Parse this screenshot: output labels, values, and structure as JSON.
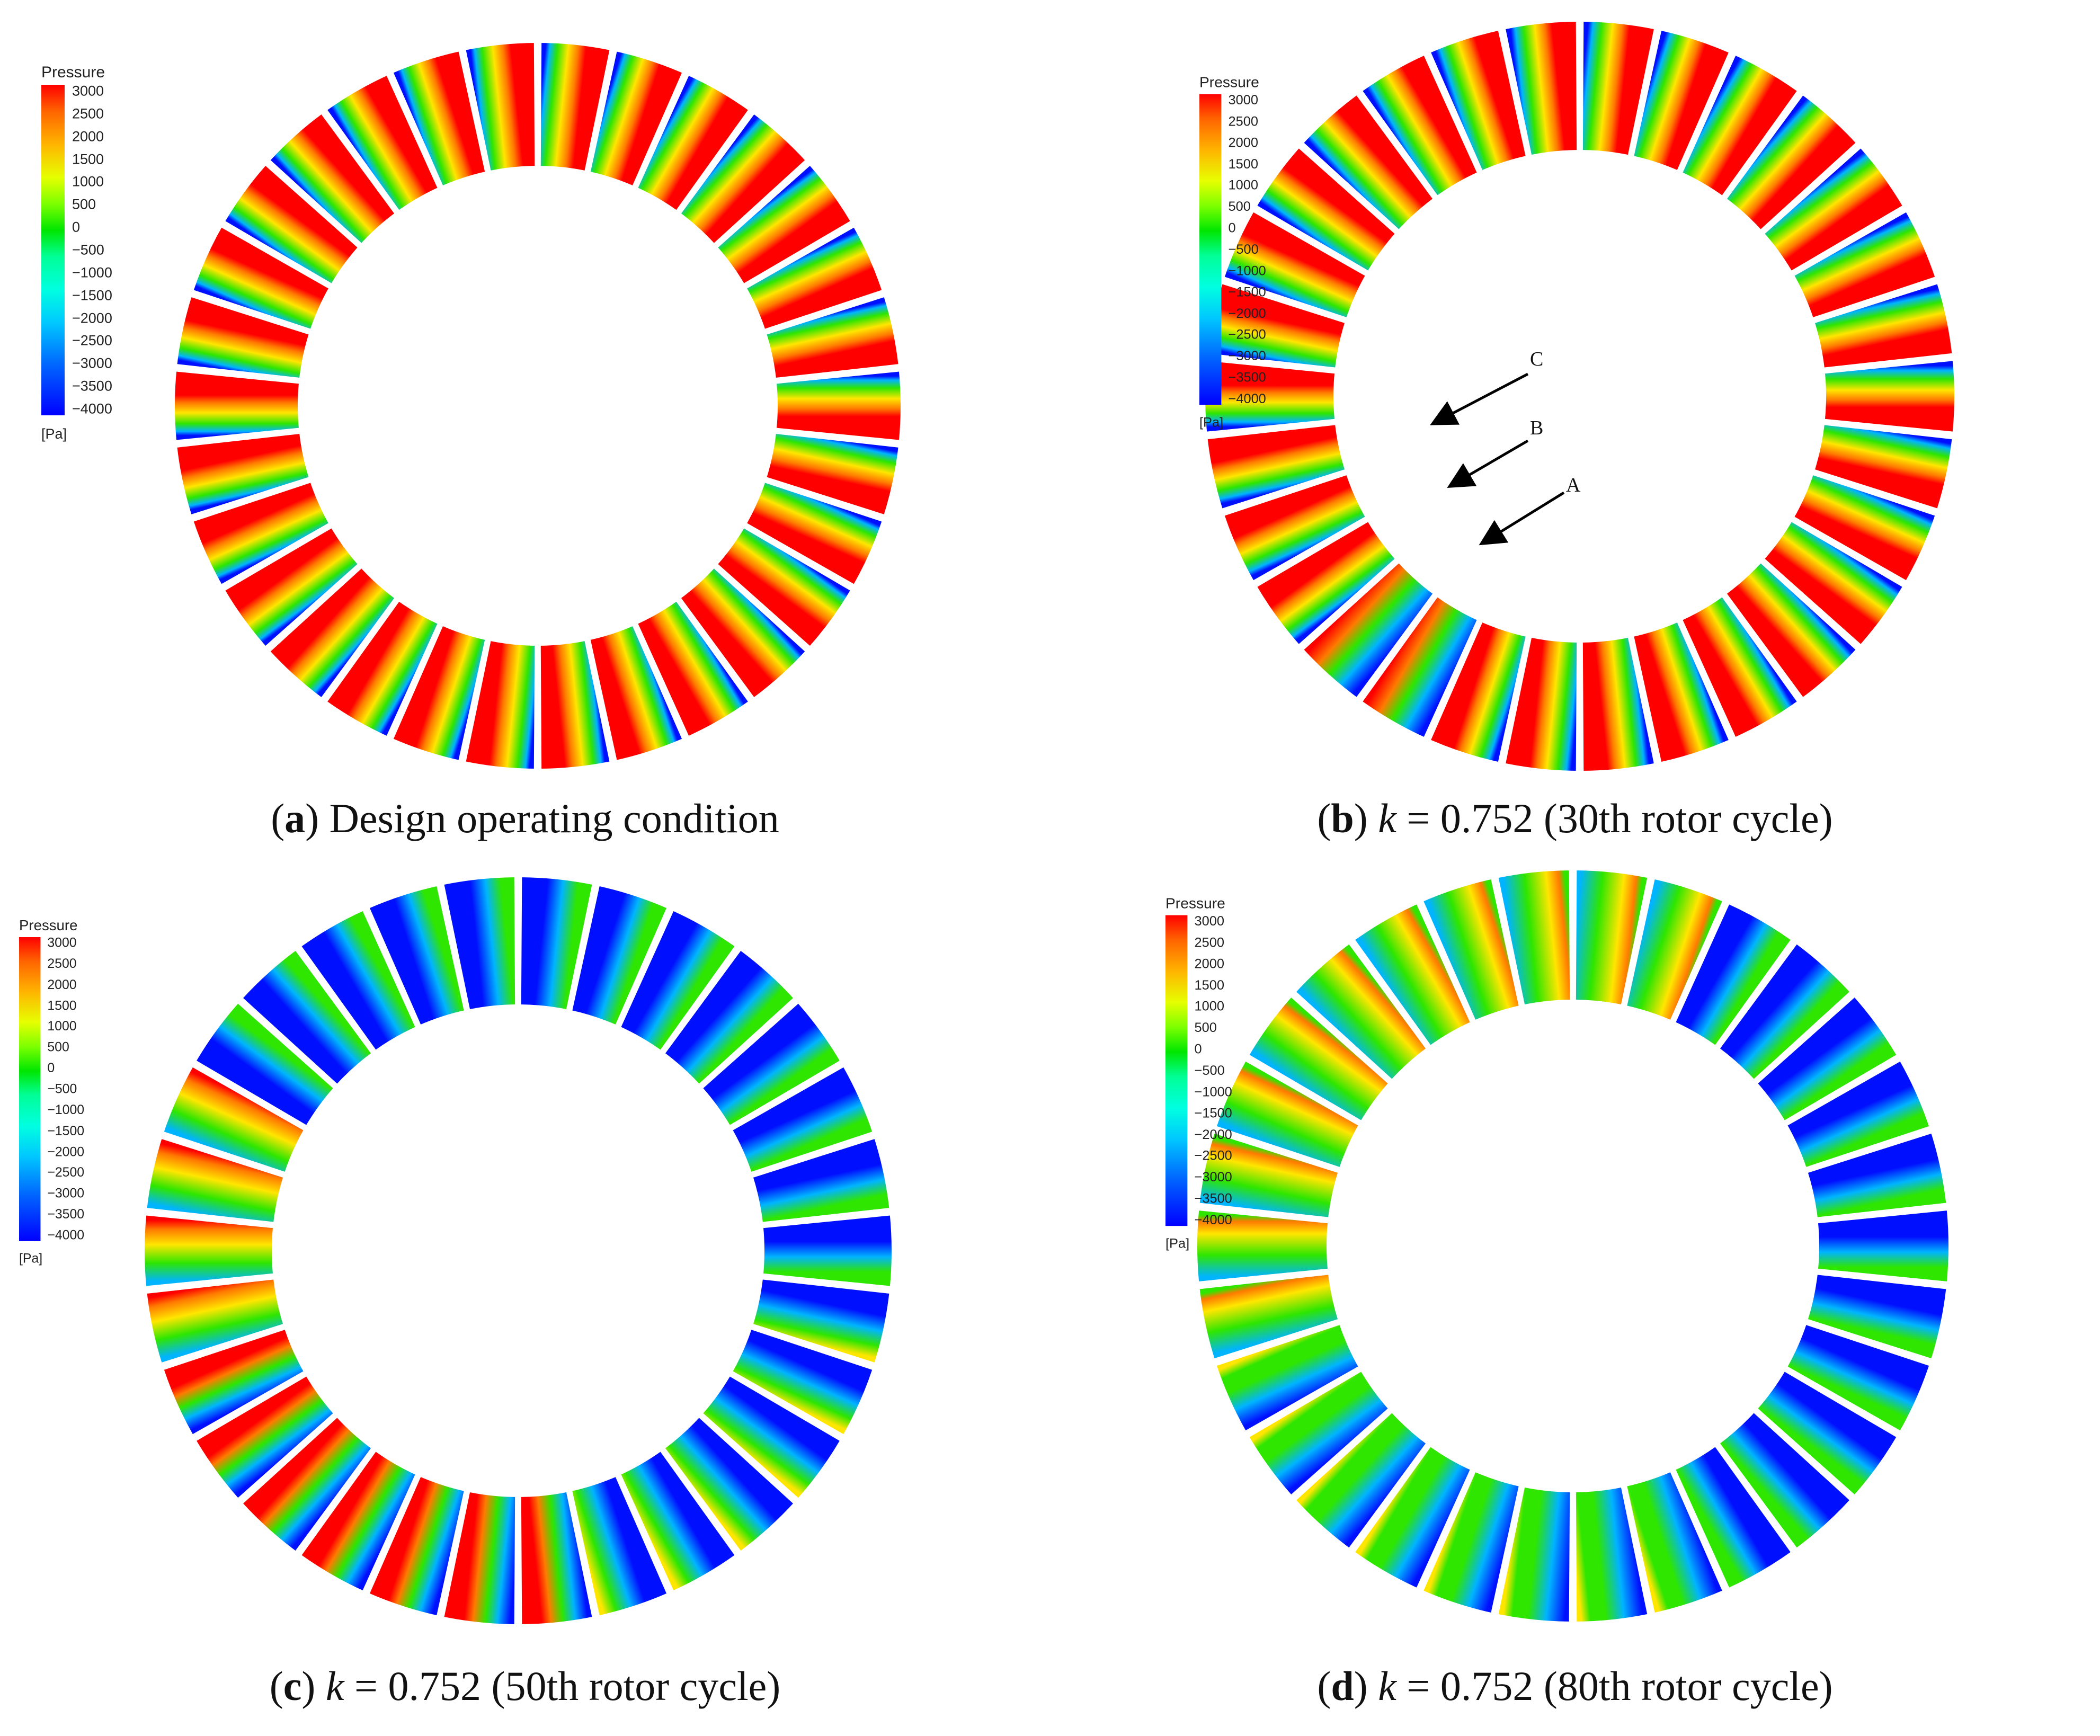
{
  "legend": {
    "title": "Pressure",
    "unit": "[Pa]",
    "ticks": [
      "3000",
      "2500",
      "2000",
      "1500",
      "1000",
      "500",
      "0",
      "−500",
      "−1000",
      "−1500",
      "−2000",
      "−2500",
      "−3000",
      "−3500",
      "−4000"
    ]
  },
  "panels": [
    {
      "id": "a",
      "letter": "a",
      "text": ") Design operating condition",
      "k_symbol": "",
      "k_value": "",
      "cycle": ""
    },
    {
      "id": "b",
      "letter": "b",
      "text": "",
      "k_symbol": "k",
      "k_value": " = 0.752 ",
      "cycle": "(30th rotor cycle)"
    },
    {
      "id": "c",
      "letter": "c",
      "text": "",
      "k_symbol": "k",
      "k_value": " = 0.752 ",
      "cycle": "(50th rotor cycle)"
    },
    {
      "id": "d",
      "letter": "d",
      "text": "",
      "k_symbol": "k",
      "k_value": " = 0.752 ",
      "cycle": "(80th rotor cycle)"
    }
  ],
  "annotations": [
    "C",
    "B",
    "A"
  ],
  "colors": {
    "red": "#ff0000",
    "orange": "#ff7a00",
    "yellow": "#ffe600",
    "green": "#2ee600",
    "cyan": "#00e6d2",
    "sky": "#00b4ff",
    "blue": "#0010ff"
  }
}
